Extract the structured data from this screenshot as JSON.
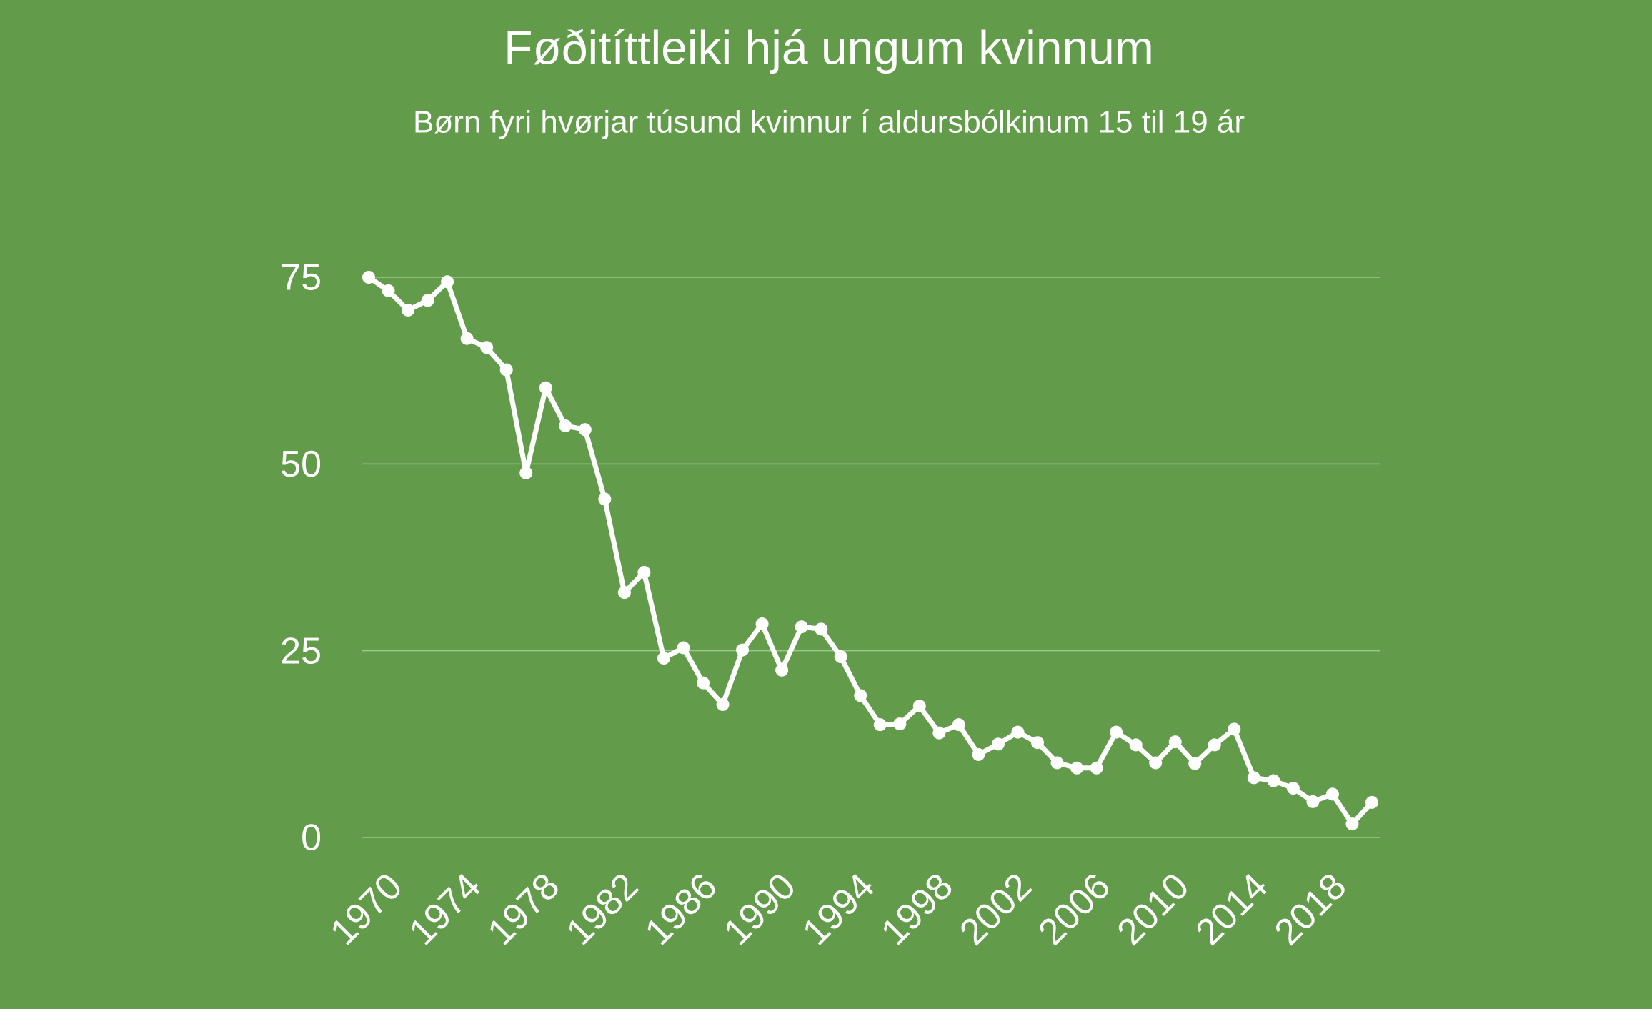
{
  "chart_data": {
    "type": "line",
    "title": "Føðitíttleiki hjá ungum kvinnum",
    "subtitle": "Børn fyri hvørjar túsund kvinnur í aldursbólkinum 15 til 19 ár",
    "x": [
      1970,
      1971,
      1972,
      1973,
      1974,
      1975,
      1976,
      1977,
      1978,
      1979,
      1980,
      1981,
      1982,
      1983,
      1984,
      1985,
      1986,
      1987,
      1988,
      1989,
      1990,
      1991,
      1992,
      1993,
      1994,
      1995,
      1996,
      1997,
      1998,
      1999,
      2000,
      2001,
      2002,
      2003,
      2004,
      2005,
      2006,
      2007,
      2008,
      2009,
      2010,
      2011,
      2012,
      2013,
      2014,
      2015,
      2016,
      2017,
      2018,
      2019,
      2020,
      2021
    ],
    "values": [
      75.0,
      73.2,
      70.6,
      71.9,
      74.4,
      66.8,
      65.6,
      62.6,
      48.8,
      60.2,
      55.1,
      54.6,
      45.3,
      32.8,
      35.5,
      24.0,
      25.4,
      20.7,
      17.8,
      25.1,
      28.6,
      22.4,
      28.2,
      27.9,
      24.2,
      19.0,
      15.1,
      15.2,
      17.6,
      14.0,
      15.1,
      11.1,
      12.5,
      14.1,
      12.7,
      10.0,
      9.3,
      9.3,
      14.1,
      12.4,
      10.0,
      12.8,
      9.9,
      12.4,
      14.5,
      8.0,
      7.6,
      6.6,
      4.8,
      5.8,
      1.8,
      4.7
    ],
    "color": "#ffffff",
    "xlim": [
      1970,
      2021
    ],
    "xticks": [
      1970,
      1974,
      1978,
      1982,
      1986,
      1990,
      1994,
      1998,
      2002,
      2006,
      2010,
      2014,
      2018
    ],
    "ylim": [
      0,
      75
    ],
    "yticks": [
      0,
      25,
      50,
      75
    ],
    "grid": true
  }
}
